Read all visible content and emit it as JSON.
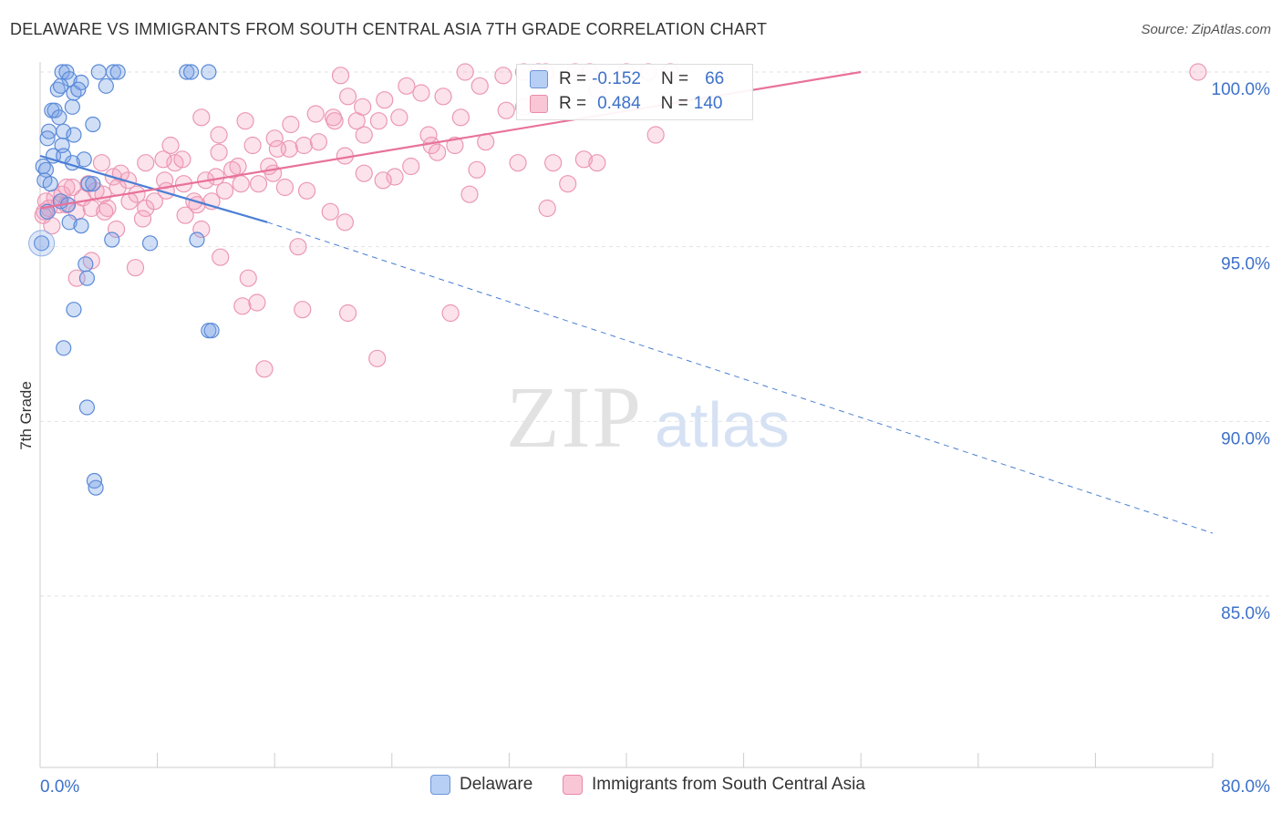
{
  "title": "DELAWARE VS IMMIGRANTS FROM SOUTH CENTRAL ASIA 7TH GRADE CORRELATION CHART",
  "source": "Source: ZipAtlas.com",
  "watermark": {
    "zip": "ZIP",
    "atlas": "atlas"
  },
  "stats": {
    "r_label": "R =",
    "n_label": "N =",
    "rows": [
      {
        "r": "-0.152",
        "n": "66",
        "color": "#a9c4f0",
        "border": "#5b8ad6"
      },
      {
        "r": "0.484",
        "n": "140",
        "color": "#f7b8cb",
        "border": "#e77fa0"
      }
    ]
  },
  "legend": [
    {
      "label": "Delaware",
      "color": "#b7cff4",
      "border": "#6b94d8"
    },
    {
      "label": "Immigrants from South Central Asia",
      "color": "#f9c6d5",
      "border": "#e98aaa"
    }
  ],
  "chart_data": {
    "type": "scatter",
    "title": "DELAWARE VS IMMIGRANTS FROM SOUTH CENTRAL ASIA 7TH GRADE CORRELATION CHART",
    "xlabel": "",
    "ylabel": "7th Grade",
    "xlim": [
      0,
      80
    ],
    "ylim": [
      80.5,
      101.0
    ],
    "x_tick_labels": [
      "0.0%",
      "80.0%"
    ],
    "y_ticks": [
      85,
      90,
      95,
      100
    ],
    "y_tick_labels": [
      "85.0%",
      "90.0%",
      "95.0%",
      "100.0%"
    ],
    "colors": {
      "blue": "#4a7fd4",
      "pink": "#e8729a",
      "blue_fill": "rgba(120,160,230,0.35)",
      "pink_fill": "rgba(244,160,190,0.30)"
    },
    "series": [
      {
        "name": "Delaware",
        "color": "#4a7fd4",
        "points": [
          [
            1.5,
            100
          ],
          [
            1.8,
            100
          ],
          [
            4,
            100
          ],
          [
            5,
            100
          ],
          [
            5.3,
            100
          ],
          [
            10,
            100
          ],
          [
            10.3,
            100
          ],
          [
            11.5,
            100
          ],
          [
            1.2,
            99.5
          ],
          [
            2.0,
            99.8
          ],
          [
            2.3,
            99.4
          ],
          [
            2.8,
            99.7
          ],
          [
            4.5,
            99.6
          ],
          [
            1.4,
            99.6
          ],
          [
            2.6,
            99.5
          ],
          [
            0.8,
            98.9
          ],
          [
            1.0,
            98.9
          ],
          [
            1.3,
            98.7
          ],
          [
            2.2,
            99.0
          ],
          [
            3.6,
            98.5
          ],
          [
            0.6,
            98.3
          ],
          [
            1.6,
            98.3
          ],
          [
            2.3,
            98.2
          ],
          [
            0.5,
            98.1
          ],
          [
            1.5,
            97.9
          ],
          [
            0.9,
            97.6
          ],
          [
            1.6,
            97.6
          ],
          [
            3.0,
            97.5
          ],
          [
            0.2,
            97.3
          ],
          [
            0.4,
            97.2
          ],
          [
            2.2,
            97.4
          ],
          [
            0.3,
            96.9
          ],
          [
            0.7,
            96.8
          ],
          [
            3.3,
            96.8
          ],
          [
            3.6,
            96.8
          ],
          [
            1.4,
            96.3
          ],
          [
            1.9,
            96.2
          ],
          [
            0.5,
            96.0
          ],
          [
            2.0,
            95.7
          ],
          [
            2.8,
            95.6
          ],
          [
            0.1,
            95.1
          ],
          [
            4.9,
            95.2
          ],
          [
            7.5,
            95.1
          ],
          [
            10.7,
            95.2
          ],
          [
            3.1,
            94.5
          ],
          [
            3.2,
            94.1
          ],
          [
            2.3,
            93.2
          ],
          [
            11.5,
            92.6
          ],
          [
            11.7,
            92.6
          ],
          [
            1.6,
            92.1
          ],
          [
            3.2,
            90.4
          ],
          [
            3.7,
            88.3
          ],
          [
            3.8,
            88.1
          ]
        ],
        "r": "-0.152",
        "n": "66",
        "trend": {
          "x0": 0,
          "y0": 97.6,
          "x1": 15.5,
          "y1": 95.7,
          "x_dash_end": 80,
          "y_dash_end": 86.8
        }
      },
      {
        "name": "Immigrants from South Central Asia",
        "color": "#e8729a",
        "points": [
          [
            0.3,
            96.0
          ],
          [
            0.4,
            96.3
          ],
          [
            0.6,
            96.1
          ],
          [
            1.0,
            96.4
          ],
          [
            1.3,
            96.2
          ],
          [
            1.5,
            96.5
          ],
          [
            1.8,
            96.2
          ],
          [
            2.2,
            96.7
          ],
          [
            2.5,
            96.0
          ],
          [
            2.9,
            96.4
          ],
          [
            3.3,
            96.8
          ],
          [
            3.8,
            96.6
          ],
          [
            4.3,
            96.5
          ],
          [
            4.6,
            96.1
          ],
          [
            5.0,
            97.0
          ],
          [
            5.3,
            96.7
          ],
          [
            6.0,
            96.9
          ],
          [
            6.6,
            96.5
          ],
          [
            7.2,
            96.1
          ],
          [
            7.8,
            96.3
          ],
          [
            8.5,
            96.9
          ],
          [
            9.2,
            97.4
          ],
          [
            9.8,
            96.8
          ],
          [
            10.5,
            96.3
          ],
          [
            11.3,
            96.9
          ],
          [
            12.0,
            97.0
          ],
          [
            12.6,
            96.6
          ],
          [
            4.2,
            97.4
          ],
          [
            5.5,
            97.1
          ],
          [
            7.2,
            97.4
          ],
          [
            8.4,
            97.5
          ],
          [
            9.7,
            97.5
          ],
          [
            12.2,
            97.7
          ],
          [
            13.5,
            97.3
          ],
          [
            14.5,
            97.9
          ],
          [
            15.9,
            97.1
          ],
          [
            17.0,
            97.8
          ],
          [
            18.0,
            97.9
          ],
          [
            20.8,
            97.6
          ],
          [
            22.1,
            97.1
          ],
          [
            24.2,
            97.0
          ],
          [
            25.3,
            97.3
          ],
          [
            26.7,
            97.9
          ],
          [
            28.3,
            97.9
          ],
          [
            29.8,
            97.2
          ],
          [
            35.0,
            97.4
          ],
          [
            11.0,
            98.7
          ],
          [
            14.0,
            98.6
          ],
          [
            17.1,
            98.5
          ],
          [
            18.8,
            98.8
          ],
          [
            20.0,
            98.7
          ],
          [
            21.0,
            99.3
          ],
          [
            22.0,
            99.0
          ],
          [
            23.5,
            99.2
          ],
          [
            24.5,
            98.7
          ],
          [
            26.0,
            99.4
          ],
          [
            27.5,
            99.3
          ],
          [
            28.7,
            98.7
          ],
          [
            30.0,
            99.6
          ],
          [
            31.6,
            99.9
          ],
          [
            33.0,
            100
          ],
          [
            34.5,
            100
          ],
          [
            36.5,
            100
          ],
          [
            37.5,
            100
          ],
          [
            40.0,
            100
          ],
          [
            41.5,
            100
          ],
          [
            43.0,
            100
          ],
          [
            20.5,
            99.9
          ],
          [
            25.0,
            99.6
          ],
          [
            34.0,
            100
          ],
          [
            38.0,
            99.5
          ],
          [
            42.0,
            98.2
          ],
          [
            33.0,
            99.0
          ],
          [
            29.0,
            100
          ],
          [
            79.0,
            100
          ],
          [
            6.5,
            94.4
          ],
          [
            12.3,
            94.7
          ],
          [
            14.2,
            94.1
          ],
          [
            2.5,
            94.1
          ],
          [
            3.5,
            94.6
          ],
          [
            17.6,
            95.0
          ],
          [
            13.8,
            93.3
          ],
          [
            14.8,
            93.4
          ],
          [
            17.9,
            93.2
          ],
          [
            21.0,
            93.1
          ],
          [
            28.0,
            93.1
          ],
          [
            20.8,
            95.7
          ],
          [
            15.3,
            91.5
          ],
          [
            23.0,
            91.8
          ],
          [
            5.2,
            95.5
          ],
          [
            11.0,
            95.5
          ],
          [
            9.9,
            95.9
          ],
          [
            7.0,
            95.8
          ],
          [
            19.8,
            96.0
          ],
          [
            29.3,
            96.5
          ],
          [
            34.6,
            96.1
          ],
          [
            36.0,
            96.8
          ],
          [
            32.6,
            97.4
          ],
          [
            23.4,
            96.9
          ],
          [
            14.9,
            96.8
          ],
          [
            18.2,
            96.6
          ],
          [
            16.7,
            96.7
          ],
          [
            1.8,
            96.7
          ],
          [
            0.8,
            95.6
          ],
          [
            0.2,
            95.9
          ],
          [
            3.5,
            96.1
          ],
          [
            4.4,
            96.0
          ],
          [
            6.1,
            96.3
          ],
          [
            8.6,
            96.6
          ],
          [
            10.7,
            96.2
          ],
          [
            11.7,
            96.3
          ],
          [
            13.1,
            97.2
          ],
          [
            13.7,
            96.8
          ],
          [
            15.6,
            97.3
          ],
          [
            19.0,
            98.0
          ],
          [
            22.1,
            98.2
          ],
          [
            26.5,
            98.2
          ],
          [
            30.4,
            98.0
          ],
          [
            31.8,
            98.9
          ],
          [
            37.1,
            97.5
          ],
          [
            38.0,
            97.4
          ],
          [
            16.0,
            98.1
          ],
          [
            12.2,
            98.2
          ],
          [
            20.1,
            98.6
          ],
          [
            21.6,
            98.6
          ],
          [
            23.1,
            98.6
          ],
          [
            8.9,
            97.9
          ],
          [
            16.2,
            97.8
          ],
          [
            27.1,
            97.7
          ]
        ],
        "r": "0.484",
        "n": "140",
        "trend": {
          "x0": 0,
          "y0": 96.1,
          "x1": 56,
          "y1": 100.0
        }
      }
    ]
  }
}
